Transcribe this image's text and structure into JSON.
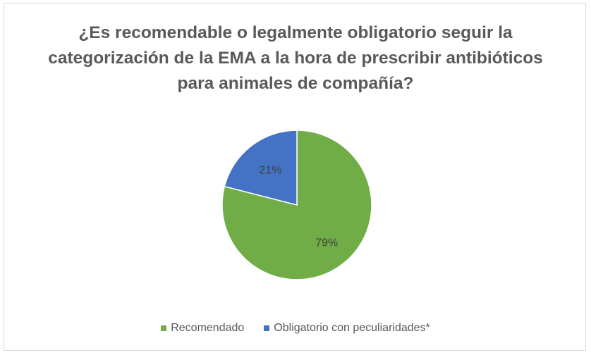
{
  "chart_data": {
    "type": "pie",
    "title": "¿Es recomendable o legalmente obligatorio seguir la categorización de la EMA a la hora de prescribir antibióticos para animales de compañía?",
    "slices": [
      {
        "label": "Recomendado",
        "value": 79,
        "value_label": "79%",
        "color": "#70ad47"
      },
      {
        "label": "Obligatorio con peculiaridades*",
        "value": 21,
        "value_label": "21%",
        "color": "#4472c4"
      }
    ],
    "legend_position": "bottom"
  }
}
